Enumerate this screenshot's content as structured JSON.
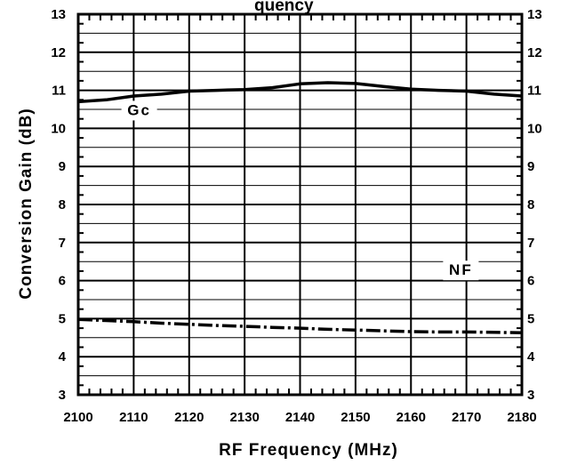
{
  "chart_data": {
    "type": "line",
    "title": "quency",
    "xlabel": "RF Frequency (MHz)",
    "ylabel": "Conversion Gain (dB)",
    "xlim": [
      2100,
      2180
    ],
    "ylim": [
      3,
      13
    ],
    "xticks": [
      "2100",
      "2110",
      "2120",
      "2130",
      "2140",
      "2150",
      "2160",
      "2170",
      "2180"
    ],
    "yticks": [
      "3",
      "4",
      "5",
      "6",
      "7",
      "8",
      "9",
      "10",
      "11",
      "12",
      "13"
    ],
    "right_yticks": [
      "3",
      "4",
      "5",
      "6",
      "7",
      "8",
      "9",
      "10",
      "11",
      "12",
      "13"
    ],
    "grid": true,
    "series": [
      {
        "name": "Gc",
        "style": "solid",
        "x": [
          2100,
          2105,
          2110,
          2115,
          2120,
          2125,
          2130,
          2135,
          2140,
          2145,
          2150,
          2155,
          2160,
          2165,
          2170,
          2175,
          2180
        ],
        "y": [
          10.7,
          10.75,
          10.85,
          10.9,
          10.98,
          11.0,
          11.02,
          11.07,
          11.17,
          11.2,
          11.18,
          11.1,
          11.03,
          11.0,
          10.98,
          10.9,
          10.85
        ]
      },
      {
        "name": "NF",
        "style": "dashed",
        "x": [
          2100,
          2105,
          2110,
          2115,
          2120,
          2125,
          2130,
          2135,
          2140,
          2145,
          2150,
          2155,
          2160,
          2165,
          2170,
          2175,
          2180
        ],
        "y": [
          4.98,
          4.95,
          4.92,
          4.88,
          4.85,
          4.82,
          4.8,
          4.77,
          4.75,
          4.72,
          4.7,
          4.68,
          4.66,
          4.65,
          4.65,
          4.64,
          4.63
        ]
      }
    ],
    "annotations": [
      {
        "text": "Gc",
        "x": 2111,
        "y": 10.35
      },
      {
        "text": "NF",
        "x": 2169,
        "y": 6.15
      }
    ]
  }
}
